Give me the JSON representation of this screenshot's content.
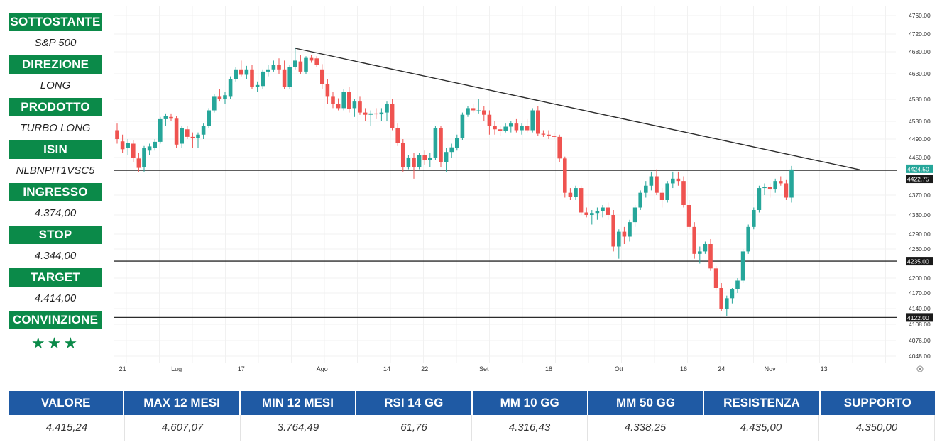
{
  "panel": {
    "items": [
      {
        "label": "SOTTOSTANTE",
        "value": "S&P 500"
      },
      {
        "label": "DIREZIONE",
        "value": "LONG"
      },
      {
        "label": "PRODOTTO",
        "value": "TURBO LONG"
      },
      {
        "label": "ISIN",
        "value": "NLBNPIT1VSC5"
      },
      {
        "label": "INGRESSO",
        "value": "4.374,00"
      },
      {
        "label": "STOP",
        "value": "4.344,00"
      },
      {
        "label": "TARGET",
        "value": "4.414,00"
      }
    ],
    "conviction_label": "CONVINZIONE",
    "conviction_stars": "★★★"
  },
  "table": {
    "headers": [
      "VALORE",
      "MAX 12 MESI",
      "MIN 12 MESI",
      "RSI 14 GG",
      "MM 10 GG",
      "MM 50 GG",
      "RESISTENZA",
      "SUPPORTO"
    ],
    "values": [
      "4.415,24",
      "4.607,07",
      "3.764,49",
      "61,76",
      "4.316,43",
      "4.338,25",
      "4.435,00",
      "4.350,00"
    ]
  },
  "chart_data": {
    "type": "candlestick",
    "colors": {
      "up": "#26a69a",
      "down": "#ef5350",
      "line": "#222222"
    },
    "y_ticks": [
      4760,
      4720,
      4680,
      4630,
      4580,
      4530,
      4490,
      4450,
      4370,
      4330,
      4290,
      4260,
      4200,
      4170,
      4140,
      4108,
      4076,
      4048
    ],
    "y_tick_labels": [
      "4760.00",
      "4720.00",
      "4680.00",
      "4630.00",
      "4580.00",
      "4530.00",
      "4490.00",
      "4450.00",
      "4370.00",
      "4330.00",
      "4290.00",
      "4260.00",
      "4200.00",
      "4170.00",
      "4140.00",
      "4108.00",
      "4076.00",
      "4048.00"
    ],
    "x_labels": [
      {
        "i": 1,
        "label": "21"
      },
      {
        "i": 11,
        "label": "Lug"
      },
      {
        "i": 23,
        "label": "17"
      },
      {
        "i": 38,
        "label": "Ago"
      },
      {
        "i": 50,
        "label": "14"
      },
      {
        "i": 57,
        "label": "22"
      },
      {
        "i": 68,
        "label": "Set"
      },
      {
        "i": 80,
        "label": "18"
      },
      {
        "i": 93,
        "label": "Ott"
      },
      {
        "i": 105,
        "label": "16"
      },
      {
        "i": 112,
        "label": "24"
      },
      {
        "i": 121,
        "label": "Nov"
      },
      {
        "i": 131,
        "label": "13"
      }
    ],
    "horizontal_lines": [
      {
        "value": 4422.75,
        "label": "4422.75"
      },
      {
        "value": 4235.0,
        "label": "4235.00"
      },
      {
        "value": 4122.0,
        "label": "4122.00"
      }
    ],
    "price_tag": {
      "value": 4424.5,
      "label": "4424.50",
      "color": "#26a69a"
    },
    "trendline": {
      "from": {
        "i": 33,
        "value": 4688
      },
      "to": {
        "i": 135,
        "value": 4424
      }
    },
    "candles": [
      {
        "o": 4510,
        "h": 4525,
        "l": 4480,
        "c": 4490
      },
      {
        "o": 4485,
        "h": 4500,
        "l": 4460,
        "c": 4468
      },
      {
        "o": 4470,
        "h": 4490,
        "l": 4455,
        "c": 4482
      },
      {
        "o": 4480,
        "h": 4488,
        "l": 4440,
        "c": 4450
      },
      {
        "o": 4448,
        "h": 4460,
        "l": 4420,
        "c": 4428
      },
      {
        "o": 4430,
        "h": 4475,
        "l": 4420,
        "c": 4470
      },
      {
        "o": 4465,
        "h": 4480,
        "l": 4455,
        "c": 4474
      },
      {
        "o": 4470,
        "h": 4490,
        "l": 4465,
        "c": 4484
      },
      {
        "o": 4484,
        "h": 4540,
        "l": 4480,
        "c": 4535
      },
      {
        "o": 4535,
        "h": 4548,
        "l": 4520,
        "c": 4542
      },
      {
        "o": 4540,
        "h": 4548,
        "l": 4530,
        "c": 4536
      },
      {
        "o": 4536,
        "h": 4542,
        "l": 4470,
        "c": 4478
      },
      {
        "o": 4480,
        "h": 4520,
        "l": 4470,
        "c": 4515
      },
      {
        "o": 4512,
        "h": 4520,
        "l": 4490,
        "c": 4495
      },
      {
        "o": 4495,
        "h": 4505,
        "l": 4470,
        "c": 4492
      },
      {
        "o": 4492,
        "h": 4505,
        "l": 4470,
        "c": 4500
      },
      {
        "o": 4500,
        "h": 4525,
        "l": 4490,
        "c": 4520
      },
      {
        "o": 4520,
        "h": 4560,
        "l": 4515,
        "c": 4555
      },
      {
        "o": 4555,
        "h": 4590,
        "l": 4550,
        "c": 4585
      },
      {
        "o": 4585,
        "h": 4600,
        "l": 4575,
        "c": 4580
      },
      {
        "o": 4580,
        "h": 4595,
        "l": 4570,
        "c": 4588
      },
      {
        "o": 4585,
        "h": 4625,
        "l": 4580,
        "c": 4620
      },
      {
        "o": 4620,
        "h": 4645,
        "l": 4615,
        "c": 4640
      },
      {
        "o": 4640,
        "h": 4660,
        "l": 4625,
        "c": 4628
      },
      {
        "o": 4628,
        "h": 4648,
        "l": 4620,
        "c": 4640
      },
      {
        "o": 4640,
        "h": 4650,
        "l": 4600,
        "c": 4605
      },
      {
        "o": 4605,
        "h": 4615,
        "l": 4595,
        "c": 4608
      },
      {
        "o": 4606,
        "h": 4640,
        "l": 4600,
        "c": 4635
      },
      {
        "o": 4635,
        "h": 4650,
        "l": 4625,
        "c": 4640
      },
      {
        "o": 4640,
        "h": 4660,
        "l": 4635,
        "c": 4650
      },
      {
        "o": 4650,
        "h": 4665,
        "l": 4630,
        "c": 4640
      },
      {
        "o": 4640,
        "h": 4660,
        "l": 4600,
        "c": 4605
      },
      {
        "o": 4605,
        "h": 4650,
        "l": 4600,
        "c": 4645
      },
      {
        "o": 4645,
        "h": 4690,
        "l": 4640,
        "c": 4660
      },
      {
        "o": 4658,
        "h": 4672,
        "l": 4630,
        "c": 4635
      },
      {
        "o": 4635,
        "h": 4670,
        "l": 4630,
        "c": 4666
      },
      {
        "o": 4666,
        "h": 4672,
        "l": 4655,
        "c": 4660
      },
      {
        "o": 4665,
        "h": 4670,
        "l": 4645,
        "c": 4650
      },
      {
        "o": 4640,
        "h": 4652,
        "l": 4600,
        "c": 4610
      },
      {
        "o": 4610,
        "h": 4620,
        "l": 4570,
        "c": 4585
      },
      {
        "o": 4585,
        "h": 4595,
        "l": 4560,
        "c": 4570
      },
      {
        "o": 4570,
        "h": 4582,
        "l": 4555,
        "c": 4560
      },
      {
        "o": 4560,
        "h": 4600,
        "l": 4555,
        "c": 4595
      },
      {
        "o": 4595,
        "h": 4605,
        "l": 4550,
        "c": 4558
      },
      {
        "o": 4560,
        "h": 4580,
        "l": 4540,
        "c": 4575
      },
      {
        "o": 4575,
        "h": 4585,
        "l": 4545,
        "c": 4550
      },
      {
        "o": 4550,
        "h": 4560,
        "l": 4530,
        "c": 4545
      },
      {
        "o": 4545,
        "h": 4555,
        "l": 4520,
        "c": 4548
      },
      {
        "o": 4548,
        "h": 4560,
        "l": 4535,
        "c": 4546
      },
      {
        "o": 4546,
        "h": 4560,
        "l": 4530,
        "c": 4550
      },
      {
        "o": 4550,
        "h": 4575,
        "l": 4530,
        "c": 4570
      },
      {
        "o": 4570,
        "h": 4580,
        "l": 4510,
        "c": 4515
      },
      {
        "o": 4515,
        "h": 4525,
        "l": 4475,
        "c": 4482
      },
      {
        "o": 4482,
        "h": 4490,
        "l": 4420,
        "c": 4430
      },
      {
        "o": 4430,
        "h": 4455,
        "l": 4425,
        "c": 4450
      },
      {
        "o": 4450,
        "h": 4460,
        "l": 4405,
        "c": 4430
      },
      {
        "o": 4430,
        "h": 4460,
        "l": 4425,
        "c": 4455
      },
      {
        "o": 4455,
        "h": 4465,
        "l": 4435,
        "c": 4445
      },
      {
        "o": 4445,
        "h": 4460,
        "l": 4430,
        "c": 4450
      },
      {
        "o": 4450,
        "h": 4520,
        "l": 4445,
        "c": 4515
      },
      {
        "o": 4515,
        "h": 4520,
        "l": 4430,
        "c": 4440
      },
      {
        "o": 4440,
        "h": 4470,
        "l": 4420,
        "c": 4462
      },
      {
        "o": 4462,
        "h": 4480,
        "l": 4450,
        "c": 4472
      },
      {
        "o": 4470,
        "h": 4500,
        "l": 4465,
        "c": 4492
      },
      {
        "o": 4492,
        "h": 4550,
        "l": 4488,
        "c": 4545
      },
      {
        "o": 4545,
        "h": 4565,
        "l": 4540,
        "c": 4560
      },
      {
        "o": 4560,
        "h": 4570,
        "l": 4550,
        "c": 4555
      },
      {
        "o": 4555,
        "h": 4580,
        "l": 4548,
        "c": 4555
      },
      {
        "o": 4555,
        "h": 4565,
        "l": 4530,
        "c": 4545
      },
      {
        "o": 4545,
        "h": 4555,
        "l": 4500,
        "c": 4520
      },
      {
        "o": 4520,
        "h": 4530,
        "l": 4500,
        "c": 4512
      },
      {
        "o": 4512,
        "h": 4520,
        "l": 4498,
        "c": 4508
      },
      {
        "o": 4508,
        "h": 4525,
        "l": 4505,
        "c": 4518
      },
      {
        "o": 4518,
        "h": 4530,
        "l": 4505,
        "c": 4525
      },
      {
        "o": 4525,
        "h": 4535,
        "l": 4505,
        "c": 4510
      },
      {
        "o": 4510,
        "h": 4525,
        "l": 4500,
        "c": 4520
      },
      {
        "o": 4520,
        "h": 4535,
        "l": 4505,
        "c": 4510
      },
      {
        "o": 4510,
        "h": 4560,
        "l": 4505,
        "c": 4555
      },
      {
        "o": 4555,
        "h": 4565,
        "l": 4498,
        "c": 4502
      },
      {
        "o": 4502,
        "h": 4510,
        "l": 4495,
        "c": 4500
      },
      {
        "o": 4500,
        "h": 4510,
        "l": 4490,
        "c": 4498
      },
      {
        "o": 4498,
        "h": 4505,
        "l": 4490,
        "c": 4495
      },
      {
        "o": 4495,
        "h": 4500,
        "l": 4440,
        "c": 4448
      },
      {
        "o": 4448,
        "h": 4452,
        "l": 4365,
        "c": 4375
      },
      {
        "o": 4375,
        "h": 4385,
        "l": 4360,
        "c": 4366
      },
      {
        "o": 4366,
        "h": 4390,
        "l": 4360,
        "c": 4385
      },
      {
        "o": 4385,
        "h": 4390,
        "l": 4330,
        "c": 4335
      },
      {
        "o": 4335,
        "h": 4345,
        "l": 4325,
        "c": 4330
      },
      {
        "o": 4330,
        "h": 4340,
        "l": 4310,
        "c": 4334
      },
      {
        "o": 4334,
        "h": 4345,
        "l": 4320,
        "c": 4338
      },
      {
        "o": 4338,
        "h": 4350,
        "l": 4325,
        "c": 4345
      },
      {
        "o": 4345,
        "h": 4355,
        "l": 4320,
        "c": 4330
      },
      {
        "o": 4330,
        "h": 4340,
        "l": 4255,
        "c": 4265
      },
      {
        "o": 4265,
        "h": 4300,
        "l": 4240,
        "c": 4295
      },
      {
        "o": 4295,
        "h": 4305,
        "l": 4270,
        "c": 4285
      },
      {
        "o": 4285,
        "h": 4320,
        "l": 4275,
        "c": 4315
      },
      {
        "o": 4315,
        "h": 4350,
        "l": 4305,
        "c": 4345
      },
      {
        "o": 4345,
        "h": 4380,
        "l": 4340,
        "c": 4375
      },
      {
        "o": 4375,
        "h": 4400,
        "l": 4365,
        "c": 4390
      },
      {
        "o": 4390,
        "h": 4420,
        "l": 4380,
        "c": 4410
      },
      {
        "o": 4410,
        "h": 4425,
        "l": 4370,
        "c": 4375
      },
      {
        "o": 4375,
        "h": 4385,
        "l": 4345,
        "c": 4360
      },
      {
        "o": 4360,
        "h": 4400,
        "l": 4355,
        "c": 4395
      },
      {
        "o": 4395,
        "h": 4420,
        "l": 4385,
        "c": 4405
      },
      {
        "o": 4405,
        "h": 4420,
        "l": 4390,
        "c": 4400
      },
      {
        "o": 4400,
        "h": 4410,
        "l": 4345,
        "c": 4350
      },
      {
        "o": 4350,
        "h": 4360,
        "l": 4300,
        "c": 4305
      },
      {
        "o": 4305,
        "h": 4315,
        "l": 4240,
        "c": 4250
      },
      {
        "o": 4250,
        "h": 4265,
        "l": 4230,
        "c": 4255
      },
      {
        "o": 4255,
        "h": 4275,
        "l": 4250,
        "c": 4270
      },
      {
        "o": 4270,
        "h": 4280,
        "l": 4215,
        "c": 4220
      },
      {
        "o": 4220,
        "h": 4225,
        "l": 4175,
        "c": 4180
      },
      {
        "o": 4180,
        "h": 4190,
        "l": 4135,
        "c": 4140
      },
      {
        "o": 4140,
        "h": 4165,
        "l": 4125,
        "c": 4160
      },
      {
        "o": 4160,
        "h": 4180,
        "l": 4150,
        "c": 4178
      },
      {
        "o": 4178,
        "h": 4200,
        "l": 4170,
        "c": 4195
      },
      {
        "o": 4195,
        "h": 4260,
        "l": 4190,
        "c": 4255
      },
      {
        "o": 4255,
        "h": 4310,
        "l": 4250,
        "c": 4305
      },
      {
        "o": 4305,
        "h": 4345,
        "l": 4300,
        "c": 4340
      },
      {
        "o": 4340,
        "h": 4390,
        "l": 4335,
        "c": 4385
      },
      {
        "o": 4385,
        "h": 4395,
        "l": 4370,
        "c": 4388
      },
      {
        "o": 4388,
        "h": 4395,
        "l": 4365,
        "c": 4382
      },
      {
        "o": 4382,
        "h": 4405,
        "l": 4375,
        "c": 4400
      },
      {
        "o": 4400,
        "h": 4410,
        "l": 4390,
        "c": 4395
      },
      {
        "o": 4395,
        "h": 4402,
        "l": 4360,
        "c": 4365
      },
      {
        "o": 4365,
        "h": 4432,
        "l": 4355,
        "c": 4424.5
      }
    ]
  }
}
